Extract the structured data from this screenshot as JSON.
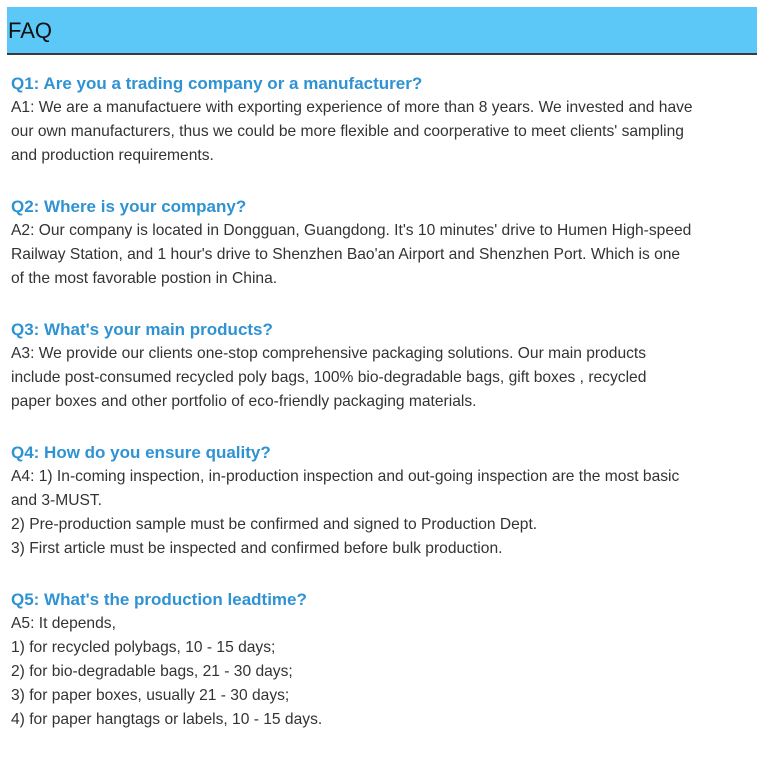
{
  "header": {
    "title": "FAQ"
  },
  "faq": [
    {
      "question": "Q1: Are you a trading company or a manufacturer?",
      "answer": [
        "A1: We are a manufactuere with exporting experience of more than 8 years. We invested and have",
        "our own manufacturers, thus we could be more flexible and coorperative to meet clients' sampling",
        "and production requirements."
      ]
    },
    {
      "question": "Q2: Where is your company?",
      "answer": [
        "A2: Our company is located in Dongguan, Guangdong. It's 10 minutes' drive to Humen High-speed",
        "Railway Station, and 1 hour's drive to Shenzhen Bao'an Airport and Shenzhen Port. Which is one",
        "of the most favorable postion in China."
      ]
    },
    {
      "question": "Q3: What's your main products?",
      "answer": [
        "A3: We provide our clients one-stop comprehensive packaging solutions. Our main products",
        "include post-consumed recycled poly bags, 100% bio-degradable bags, gift boxes , recycled",
        "paper boxes and other portfolio of eco-friendly packaging materials."
      ]
    },
    {
      "question": "Q4: How do you ensure quality?",
      "answer": [
        "A4: 1) In-coming inspection, in-production inspection and out-going inspection are the most basic",
        "and 3-MUST.",
        "2) Pre-production sample must be confirmed and signed to Production Dept.",
        "3) First article must be inspected and confirmed before bulk production."
      ]
    },
    {
      "question": "Q5: What's the production leadtime?",
      "answer": [
        "A5: It depends,",
        "1) for recycled polybags, 10 - 15 days;",
        "2) for bio-degradable bags, 21 - 30 days;",
        "3) for paper boxes, usually 21 - 30 days;",
        "4) for paper hangtags or labels, 10 - 15 days."
      ]
    }
  ]
}
